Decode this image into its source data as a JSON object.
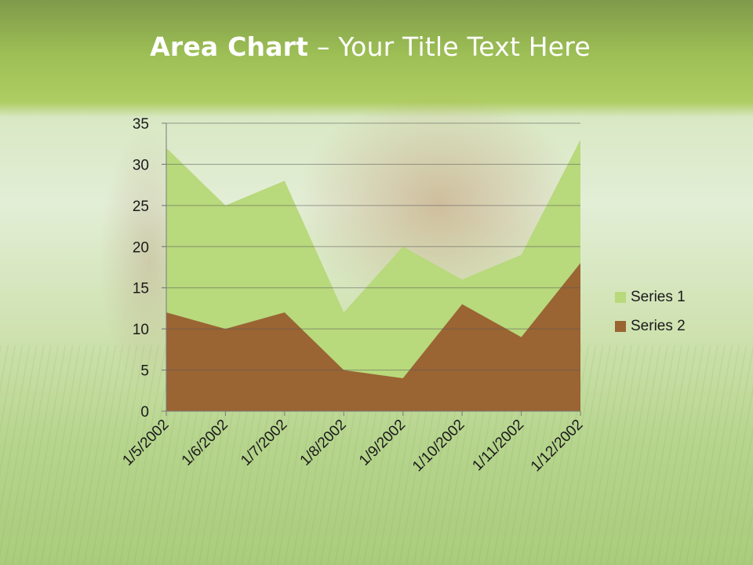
{
  "slide": {
    "title_bold": "Area Chart",
    "title_rest": " – Your Title Text Here"
  },
  "chart_data": {
    "type": "area",
    "title": "",
    "xlabel": "",
    "ylabel": "",
    "categories": [
      "1/5/2002",
      "1/6/2002",
      "1/7/2002",
      "1/8/2002",
      "1/9/2002",
      "1/10/2002",
      "1/11/2002",
      "1/12/2002"
    ],
    "series": [
      {
        "name": "Series 1",
        "values": [
          32,
          25,
          28,
          12,
          20,
          16,
          19,
          33
        ],
        "color": "#b8d97c"
      },
      {
        "name": "Series 2",
        "values": [
          12,
          10,
          12,
          5,
          4,
          13,
          9,
          18
        ],
        "color": "#9a6433"
      }
    ],
    "ylim": [
      0,
      35
    ],
    "yticks": [
      0,
      5,
      10,
      15,
      20,
      25,
      30,
      35
    ],
    "grid": true,
    "legend": "right"
  }
}
